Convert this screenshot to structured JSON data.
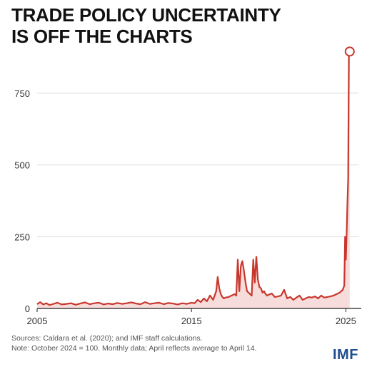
{
  "title_lines": [
    "TRADE POLICY UNCERTAINTY",
    "IS OFF THE CHARTS"
  ],
  "source": "Sources: Caldara et al. (2020); and IMF staff calculations.",
  "note": "Note: October 2024 = 100. Monthly data; April reflects average to April 14.",
  "logo": "IMF",
  "colors": {
    "line": "#c8372d",
    "fill": "#f6dcda",
    "grid": "#d9d9d9",
    "logo": "#1f4e8c"
  },
  "chart_data": {
    "type": "area",
    "title": "TRADE POLICY UNCERTAINTY IS OFF THE CHARTS",
    "xlabel": "",
    "ylabel": "",
    "xlim": [
      2005.0,
      2026.0
    ],
    "ylim": [
      0,
      1000
    ],
    "x_ticks": [
      2005,
      2015,
      2025
    ],
    "x_tick_labels": [
      "2005",
      "2015",
      "2025"
    ],
    "y_ticks": [
      0,
      250,
      500,
      750
    ],
    "y_tick_labels": [
      "0",
      "250",
      "500",
      "750"
    ],
    "grid": "horizontal",
    "legend": "none",
    "series": [
      {
        "x": [
          2005.0,
          2005.2,
          2005.4,
          2005.6,
          2005.8,
          2006.0,
          2006.3,
          2006.6,
          2006.9,
          2007.2,
          2007.5,
          2007.8,
          2008.1,
          2008.4,
          2008.7,
          2009.0,
          2009.3,
          2009.6,
          2009.9,
          2010.2,
          2010.5,
          2010.8,
          2011.1,
          2011.4,
          2011.7,
          2012.0,
          2012.3,
          2012.6,
          2012.9,
          2013.2,
          2013.5,
          2013.8,
          2014.1,
          2014.4,
          2014.7,
          2015.0,
          2015.2,
          2015.4,
          2015.6,
          2015.8,
          2016.0,
          2016.2,
          2016.4,
          2016.6,
          2016.7,
          2016.8,
          2016.9,
          2017.0,
          2017.1,
          2017.2,
          2017.4,
          2017.6,
          2017.8,
          2017.9,
          2018.0,
          2018.1,
          2018.2,
          2018.3,
          2018.4,
          2018.5,
          2018.6,
          2018.7,
          2018.8,
          2018.9,
          2019.0,
          2019.1,
          2019.2,
          2019.3,
          2019.4,
          2019.5,
          2019.6,
          2019.7,
          2019.8,
          2019.9,
          2020.0,
          2020.2,
          2020.4,
          2020.6,
          2020.8,
          2021.0,
          2021.2,
          2021.4,
          2021.6,
          2021.8,
          2022.0,
          2022.2,
          2022.4,
          2022.6,
          2022.8,
          2023.0,
          2023.2,
          2023.4,
          2023.6,
          2023.8,
          2024.0,
          2024.2,
          2024.4,
          2024.6,
          2024.7,
          2024.8,
          2024.9,
          2024.95,
          2025.0,
          2025.05,
          2025.1,
          2025.15,
          2025.2,
          2025.25
        ],
        "values": [
          15,
          22,
          14,
          18,
          12,
          15,
          20,
          14,
          16,
          18,
          13,
          17,
          21,
          15,
          18,
          20,
          14,
          17,
          15,
          19,
          16,
          18,
          21,
          17,
          15,
          22,
          16,
          18,
          20,
          15,
          19,
          17,
          14,
          18,
          16,
          20,
          18,
          30,
          22,
          35,
          25,
          45,
          30,
          60,
          110,
          70,
          50,
          40,
          35,
          38,
          40,
          45,
          50,
          45,
          170,
          60,
          150,
          165,
          130,
          90,
          60,
          55,
          50,
          45,
          170,
          90,
          180,
          100,
          75,
          70,
          55,
          60,
          50,
          45,
          48,
          52,
          40,
          42,
          45,
          65,
          35,
          40,
          30,
          38,
          45,
          30,
          35,
          40,
          38,
          42,
          35,
          45,
          38,
          40,
          42,
          45,
          50,
          55,
          60,
          65,
          80,
          250,
          170,
          260,
          360,
          450,
          900,
          895
        ]
      }
    ],
    "annotations": [
      {
        "type": "circle-marker",
        "x": 2025.25,
        "y": 895
      }
    ]
  }
}
